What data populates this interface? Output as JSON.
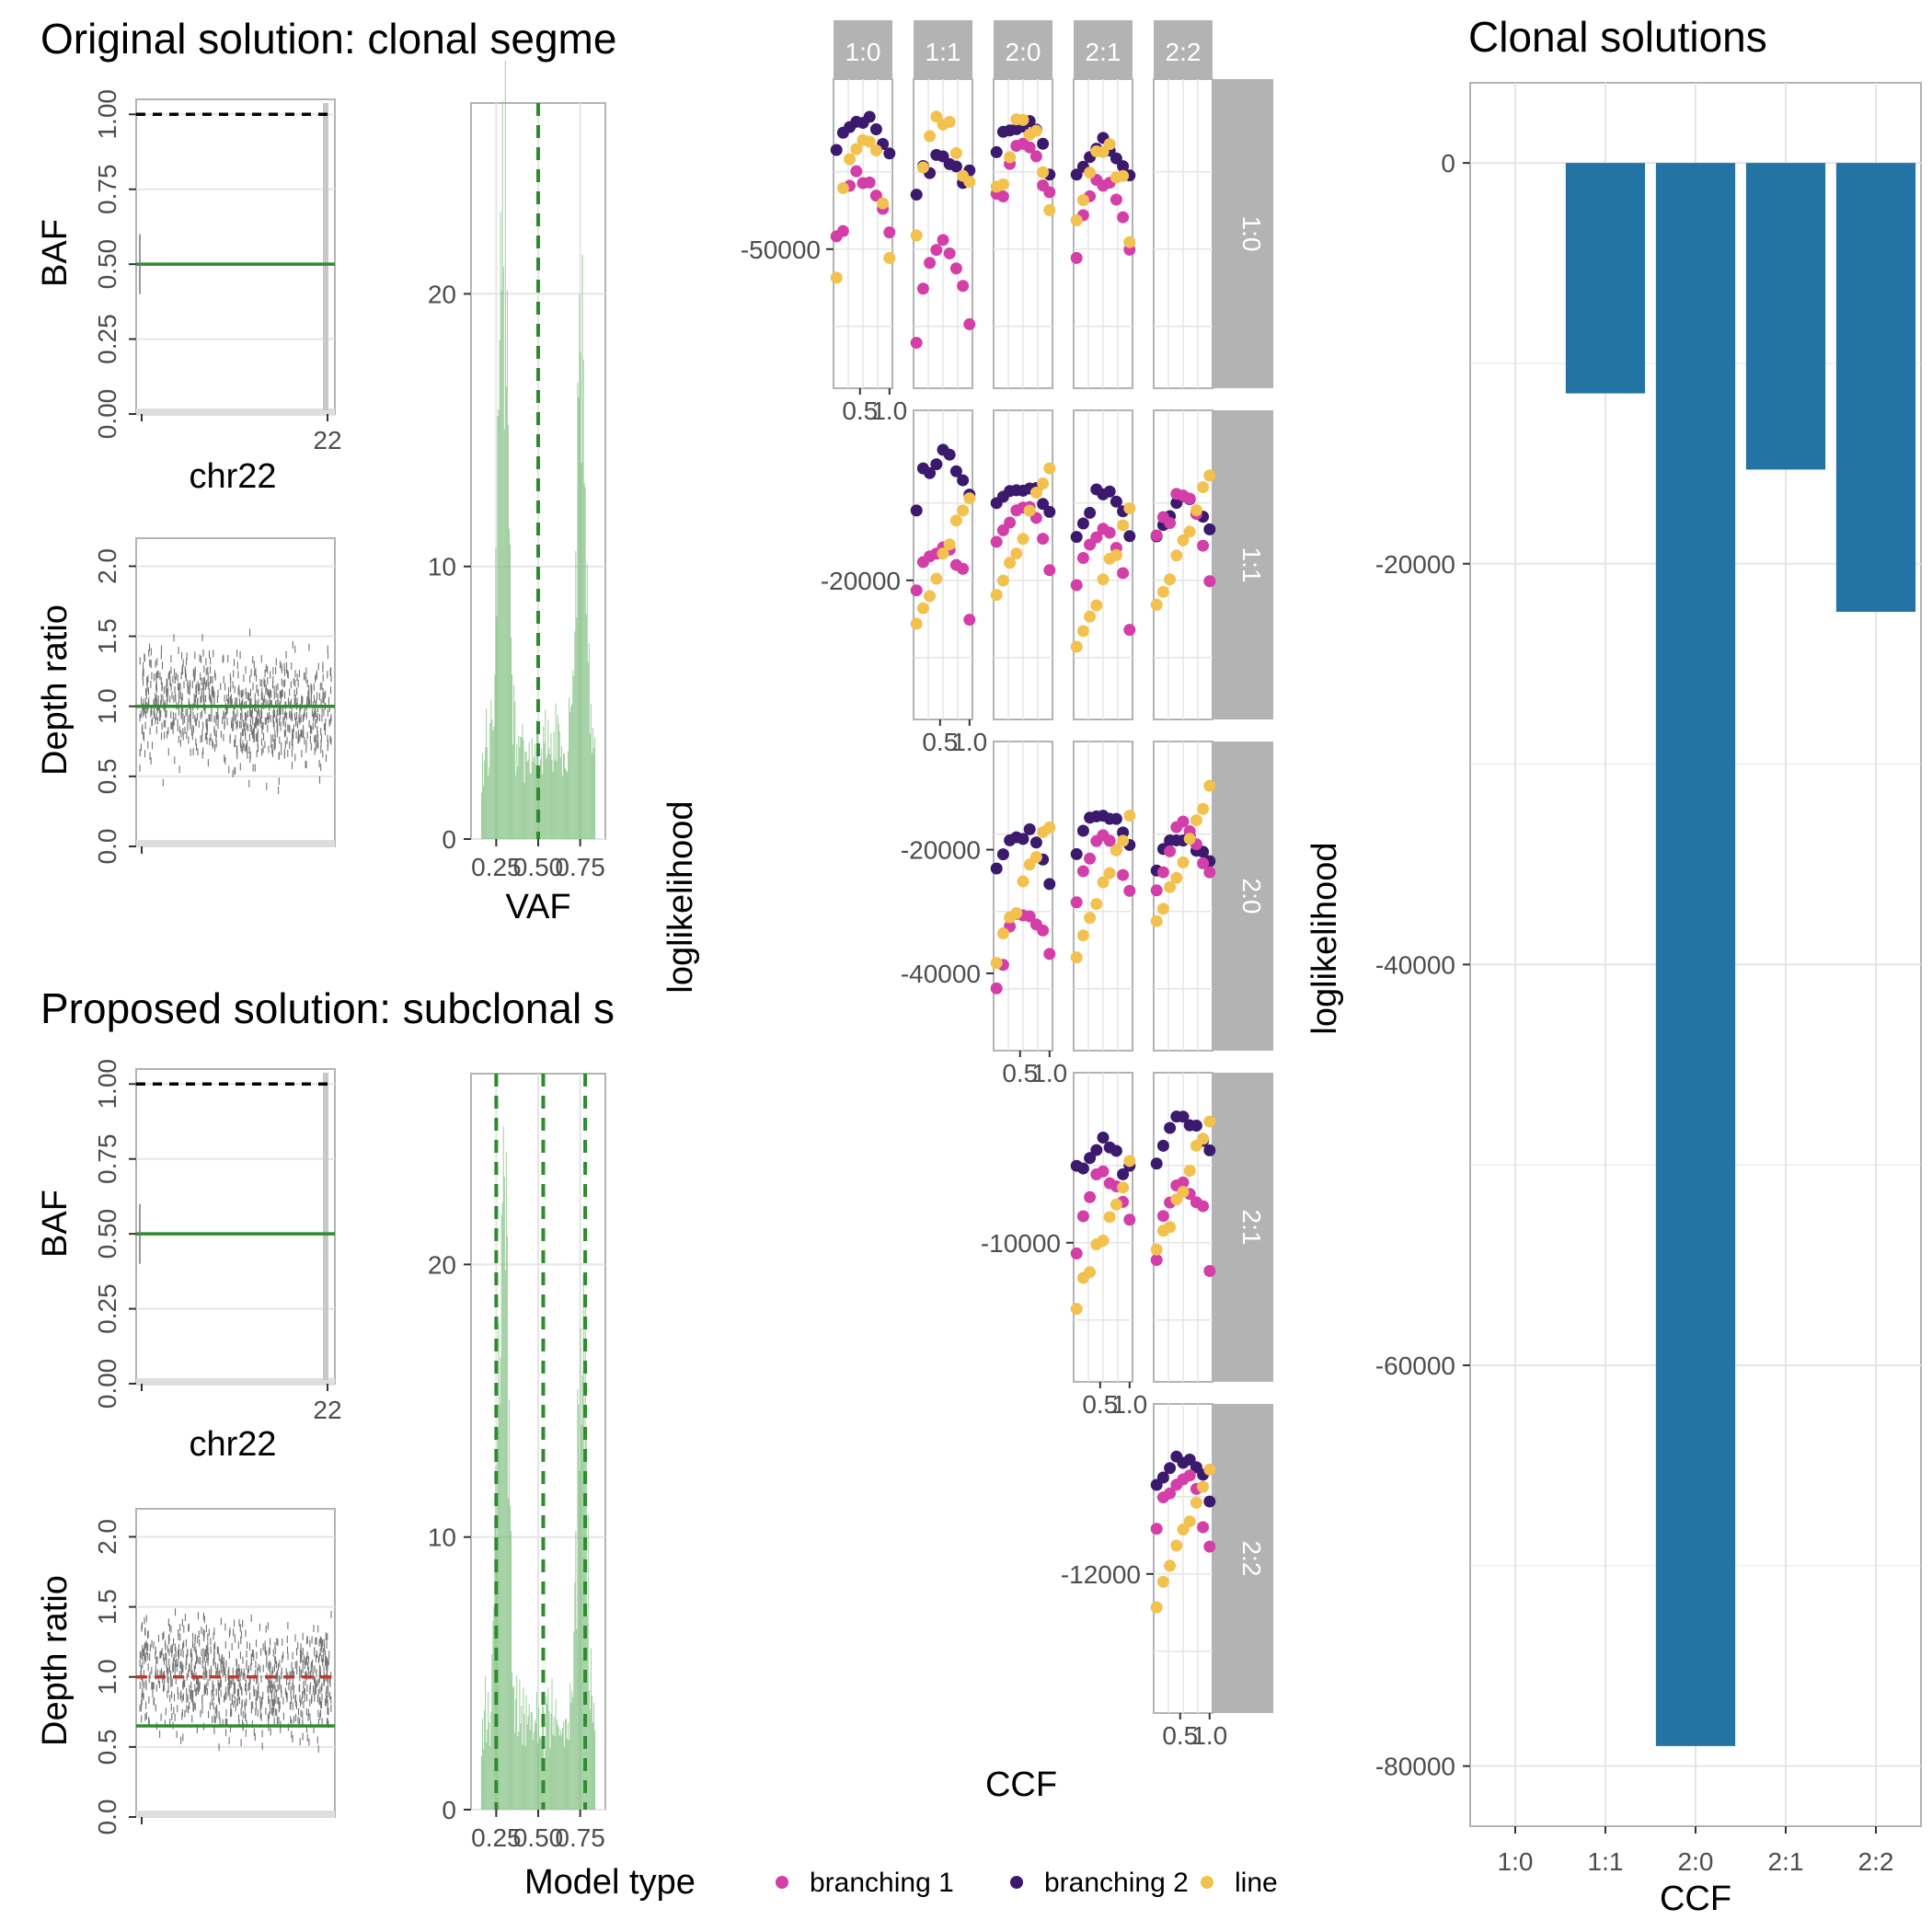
{
  "figure": {
    "legend": {
      "title": "Model type",
      "entries": [
        {
          "label": "branching 1",
          "color": "#d33ea8"
        },
        {
          "label": "branching 2",
          "color": "#3b1a6e"
        },
        {
          "label": "line",
          "color": "#f2c14e"
        }
      ]
    }
  },
  "chart_data": [
    {
      "id": "original-baf",
      "type": "line",
      "title": "Original solution: clonal segme",
      "xlabel": "chr22",
      "ylabel": "BAF",
      "x_ticks": [
        "22"
      ],
      "y_ticks": [
        "0.00",
        "0.25",
        "0.50",
        "0.75",
        "1.00"
      ],
      "ylim": [
        0,
        1.05
      ],
      "lines": [
        {
          "y": 0.5,
          "color": "#2e8b2e"
        },
        {
          "y": 1.0,
          "color": "#000000",
          "dashed": true
        }
      ]
    },
    {
      "id": "original-depth",
      "type": "scatter",
      "xlabel": "",
      "ylabel": "Depth ratio",
      "y_ticks": [
        "0.0",
        "0.5",
        "1.0",
        "1.5",
        "2.0"
      ],
      "ylim": [
        0,
        2.2
      ],
      "lines": [
        {
          "y": 1.0,
          "color": "#2e8b2e"
        }
      ]
    },
    {
      "id": "original-vaf",
      "type": "bar",
      "xlabel": "VAF",
      "ylabel": "",
      "x_ticks": [
        "0.25",
        "0.50",
        "0.75"
      ],
      "y_ticks": [
        "0",
        "10",
        "20"
      ],
      "ylim": [
        0,
        27
      ],
      "xlim": [
        0.1,
        0.9
      ],
      "vlines": [
        0.5
      ]
    },
    {
      "id": "proposed-baf",
      "type": "line",
      "title": "Proposed solution: subclonal s",
      "xlabel": "chr22",
      "ylabel": "BAF",
      "x_ticks": [
        "22"
      ],
      "y_ticks": [
        "0.00",
        "0.25",
        "0.50",
        "0.75",
        "1.00"
      ],
      "ylim": [
        0,
        1.05
      ],
      "lines": [
        {
          "y": 0.5,
          "color": "#2e8b2e"
        },
        {
          "y": 1.0,
          "color": "#000000",
          "dashed": true
        }
      ]
    },
    {
      "id": "proposed-depth",
      "type": "scatter",
      "xlabel": "",
      "ylabel": "Depth ratio",
      "y_ticks": [
        "0.0",
        "0.5",
        "1.0",
        "1.5",
        "2.0"
      ],
      "ylim": [
        0,
        2.2
      ],
      "lines": [
        {
          "y": 0.65,
          "color": "#2e8b2e"
        },
        {
          "y": 1.0,
          "color": "#c0392b",
          "dashed": true
        }
      ]
    },
    {
      "id": "proposed-vaf",
      "type": "bar",
      "xlabel": "",
      "ylabel": "",
      "x_ticks": [
        "0.25",
        "0.50",
        "0.75"
      ],
      "y_ticks": [
        "0",
        "10",
        "20"
      ],
      "ylim": [
        0,
        27
      ],
      "xlim": [
        0.1,
        0.9
      ],
      "vlines": [
        0.25,
        0.53,
        0.78
      ]
    },
    {
      "id": "loglik-grid",
      "type": "scatter",
      "xlabel": "CCF",
      "ylabel": "loglikelihood",
      "col_strips": [
        "1:0",
        "1:1",
        "2:0",
        "2:1",
        "2:2"
      ],
      "row_strips": [
        "1:0",
        "1:1",
        "2:0",
        "2:1",
        "2:2"
      ],
      "x_tick_labels": [
        "0.5",
        "1.0"
      ],
      "row_y_ticks": [
        [
          "-50000"
        ],
        [
          "-20000"
        ],
        [
          "-20000",
          "-40000"
        ],
        [
          "-10000"
        ],
        [
          "-12000"
        ]
      ]
    },
    {
      "id": "clonal-solutions",
      "type": "bar",
      "title": "Clonal solutions",
      "xlabel": "CCF",
      "ylabel": "loglikelihood",
      "categories": [
        "1:0",
        "1:1",
        "2:0",
        "2:1",
        "2:2"
      ],
      "values": [
        0,
        -11500,
        -79000,
        -15300,
        -22400
      ],
      "y_ticks": [
        "0",
        "-20000",
        "-40000",
        "-60000",
        "-80000"
      ],
      "ylim": [
        -83000,
        4000
      ],
      "bar_color": "#2374a5"
    }
  ]
}
